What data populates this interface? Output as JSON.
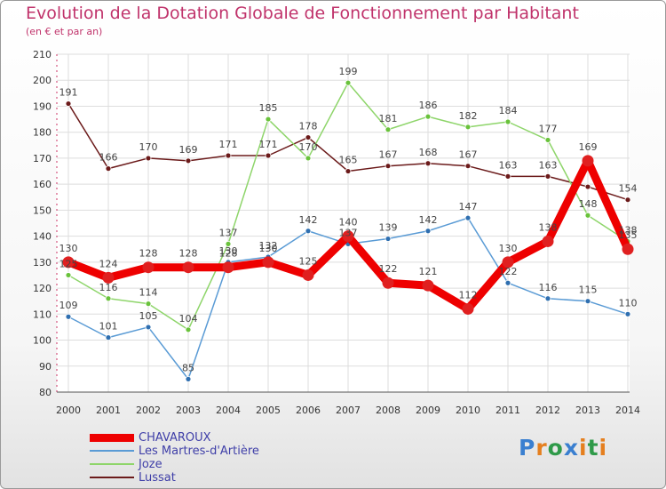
{
  "title": "Evolution de la Dotation Globale de Fonctionnement par Habitant",
  "subtitle": "(en € et par an)",
  "logo_text": "Proxiti",
  "colors": {
    "title": "#c0336b",
    "legend_text": "#3f3fa8",
    "grid": "#dddddd",
    "axis": "#cc3366"
  },
  "chart_data": {
    "type": "line",
    "x": [
      "2000",
      "2001",
      "2002",
      "2003",
      "2004",
      "2005",
      "2006",
      "2007",
      "2008",
      "2009",
      "2010",
      "2011",
      "2012",
      "2013",
      "2014"
    ],
    "ylim": [
      80,
      210
    ],
    "yticks": [
      80,
      90,
      100,
      110,
      120,
      130,
      140,
      150,
      160,
      170,
      180,
      190,
      200,
      210
    ],
    "grid": true,
    "legend_position": "bottom-left",
    "series": [
      {
        "name": "Lussat",
        "color": "#6b1a1a",
        "marker": "#6b1a1a",
        "values": [
          191,
          166,
          170,
          169,
          171,
          171,
          178,
          165,
          167,
          168,
          167,
          163,
          163,
          159,
          154
        ],
        "labels": [
          "191",
          "166",
          "170",
          "169",
          "171",
          "171",
          "178",
          "165",
          "167",
          "168",
          "167",
          "163",
          "163",
          "",
          "154"
        ]
      },
      {
        "name": "Joze",
        "color": "#8ed56a",
        "marker": "#69c23b",
        "values": [
          125,
          116,
          114,
          104,
          137,
          185,
          170,
          199,
          181,
          186,
          182,
          184,
          177,
          148,
          138
        ],
        "labels": [
          "125",
          "116",
          "114",
          "104",
          "137",
          "185",
          "170",
          "199",
          "181",
          "186",
          "182",
          "184",
          "177",
          "148",
          "138"
        ]
      },
      {
        "name": "Les Martres-d'Artière",
        "color": "#5a9bd5",
        "marker": "#2f6fb0",
        "values": [
          109,
          101,
          105,
          85,
          130,
          132,
          142,
          137,
          139,
          142,
          147,
          122,
          116,
          115,
          110
        ],
        "labels": [
          "109",
          "101",
          "105",
          "85",
          "130",
          "132",
          "142",
          "137",
          "139",
          "142",
          "147",
          "122",
          "116",
          "115",
          "110"
        ]
      },
      {
        "name": "CHAVAROUX",
        "color": "#ee0000",
        "marker": "#e02020",
        "values": [
          130,
          124,
          128,
          128,
          128,
          130,
          125,
          140,
          122,
          121,
          112,
          130,
          138,
          169,
          135
        ],
        "labels": [
          "130",
          "124",
          "128",
          "128",
          "128",
          "130",
          "125",
          "140",
          "122",
          "121",
          "112",
          "130",
          "138",
          "169",
          "135"
        ]
      }
    ]
  },
  "legend": [
    {
      "label": "CHAVAROUX",
      "color": "#ee0000",
      "thickness": 9
    },
    {
      "label": "Les Martres-d'Artière",
      "color": "#5a9bd5",
      "thickness": 2
    },
    {
      "label": "Joze",
      "color": "#8ed56a",
      "thickness": 2
    },
    {
      "label": "Lussat",
      "color": "#6b1a1a",
      "thickness": 2
    }
  ]
}
